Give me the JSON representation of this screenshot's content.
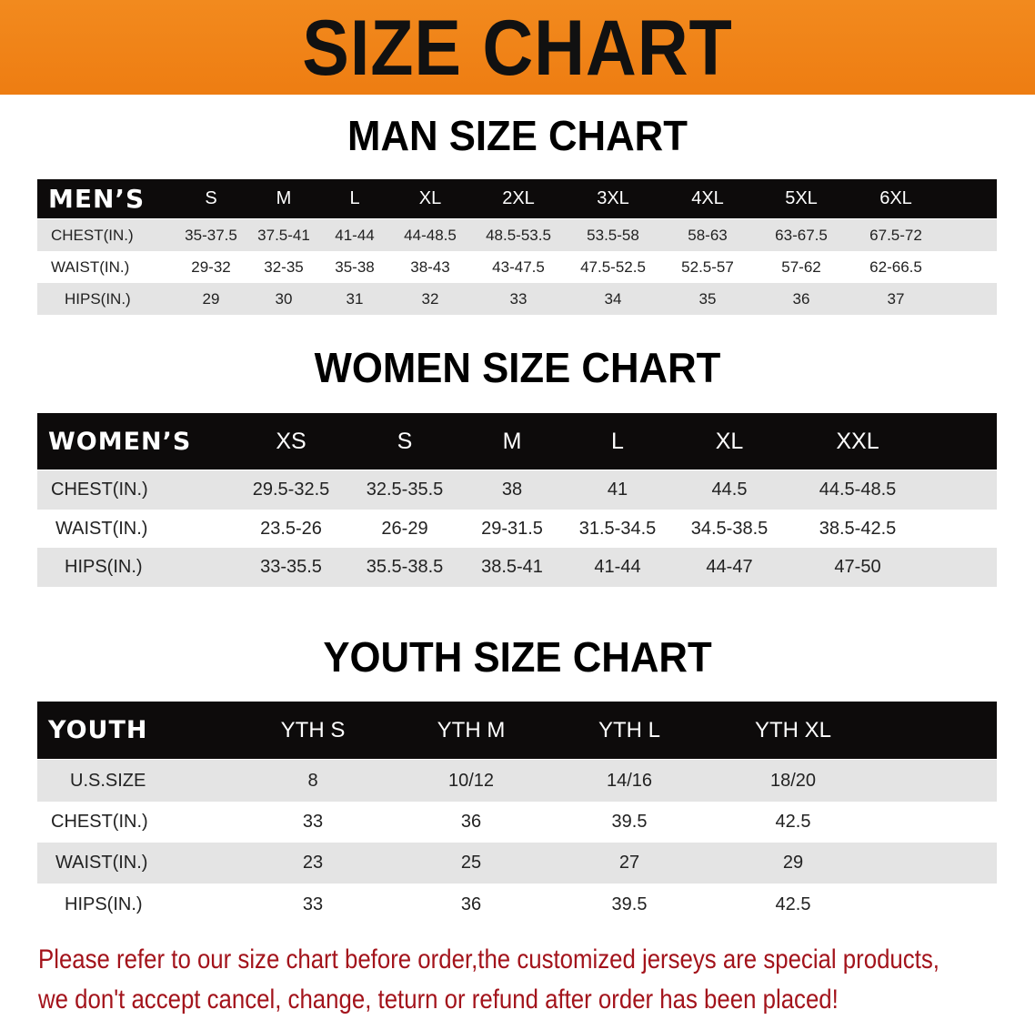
{
  "banner_title": "SIZE CHART",
  "men": {
    "title": "MAN SIZE CHART",
    "header": "MEN’S",
    "sizes": [
      "S",
      "M",
      "L",
      "XL",
      "2XL",
      "3XL",
      "4XL",
      "5XL",
      "6XL"
    ],
    "rows": [
      {
        "label": "CHEST(IN.)",
        "values": [
          "35-37.5",
          "37.5-41",
          "41-44",
          "44-48.5",
          "48.5-53.5",
          "53.5-58",
          "58-63",
          "63-67.5",
          "67.5-72"
        ]
      },
      {
        "label": "WAIST(IN.)",
        "values": [
          "29-32",
          "32-35",
          "35-38",
          "38-43",
          "43-47.5",
          "47.5-52.5",
          "52.5-57",
          "57-62",
          "62-66.5"
        ]
      },
      {
        "label": "HIPS(IN.)",
        "values": [
          "29",
          "30",
          "31",
          "32",
          "33",
          "34",
          "35",
          "36",
          "37"
        ]
      }
    ]
  },
  "women": {
    "title": "WOMEN SIZE CHART",
    "header": "WOMEN’S",
    "sizes": [
      "XS",
      "S",
      "M",
      "L",
      "XL",
      "XXL"
    ],
    "rows": [
      {
        "label": "CHEST(IN.)",
        "values": [
          "29.5-32.5",
          "32.5-35.5",
          "38",
          "41",
          "44.5",
          "44.5-48.5"
        ]
      },
      {
        "label": "WAIST(IN.)",
        "values": [
          "23.5-26",
          "26-29",
          "29-31.5",
          "31.5-34.5",
          "34.5-38.5",
          "38.5-42.5"
        ]
      },
      {
        "label": "HIPS(IN.)",
        "values": [
          "33-35.5",
          "35.5-38.5",
          "38.5-41",
          "41-44",
          "44-47",
          "47-50"
        ]
      }
    ]
  },
  "youth": {
    "title": "YOUTH SIZE CHART",
    "header": "YOUTH",
    "sizes": [
      "YTH S",
      "YTH M",
      "YTH L",
      "YTH XL"
    ],
    "rows": [
      {
        "label": "U.S.SIZE",
        "values": [
          "8",
          "10/12",
          "14/16",
          "18/20"
        ]
      },
      {
        "label": "CHEST(IN.)",
        "values": [
          "33",
          "36",
          "39.5",
          "42.5"
        ]
      },
      {
        "label": "WAIST(IN.)",
        "values": [
          "23",
          "25",
          "27",
          "29"
        ]
      },
      {
        "label": "HIPS(IN.)",
        "values": [
          "33",
          "36",
          "39.5",
          "42.5"
        ]
      }
    ]
  },
  "notice": [
    "Please refer to our size chart before order,the customized jerseys are special products,",
    "we don't accept cancel, change, teturn or refund after order has been placed!"
  ],
  "colors": {
    "banner": "#ef8418",
    "header_row": "#0d0b0b",
    "stripe": "#e4e4e4",
    "notice": "#a3131b"
  }
}
